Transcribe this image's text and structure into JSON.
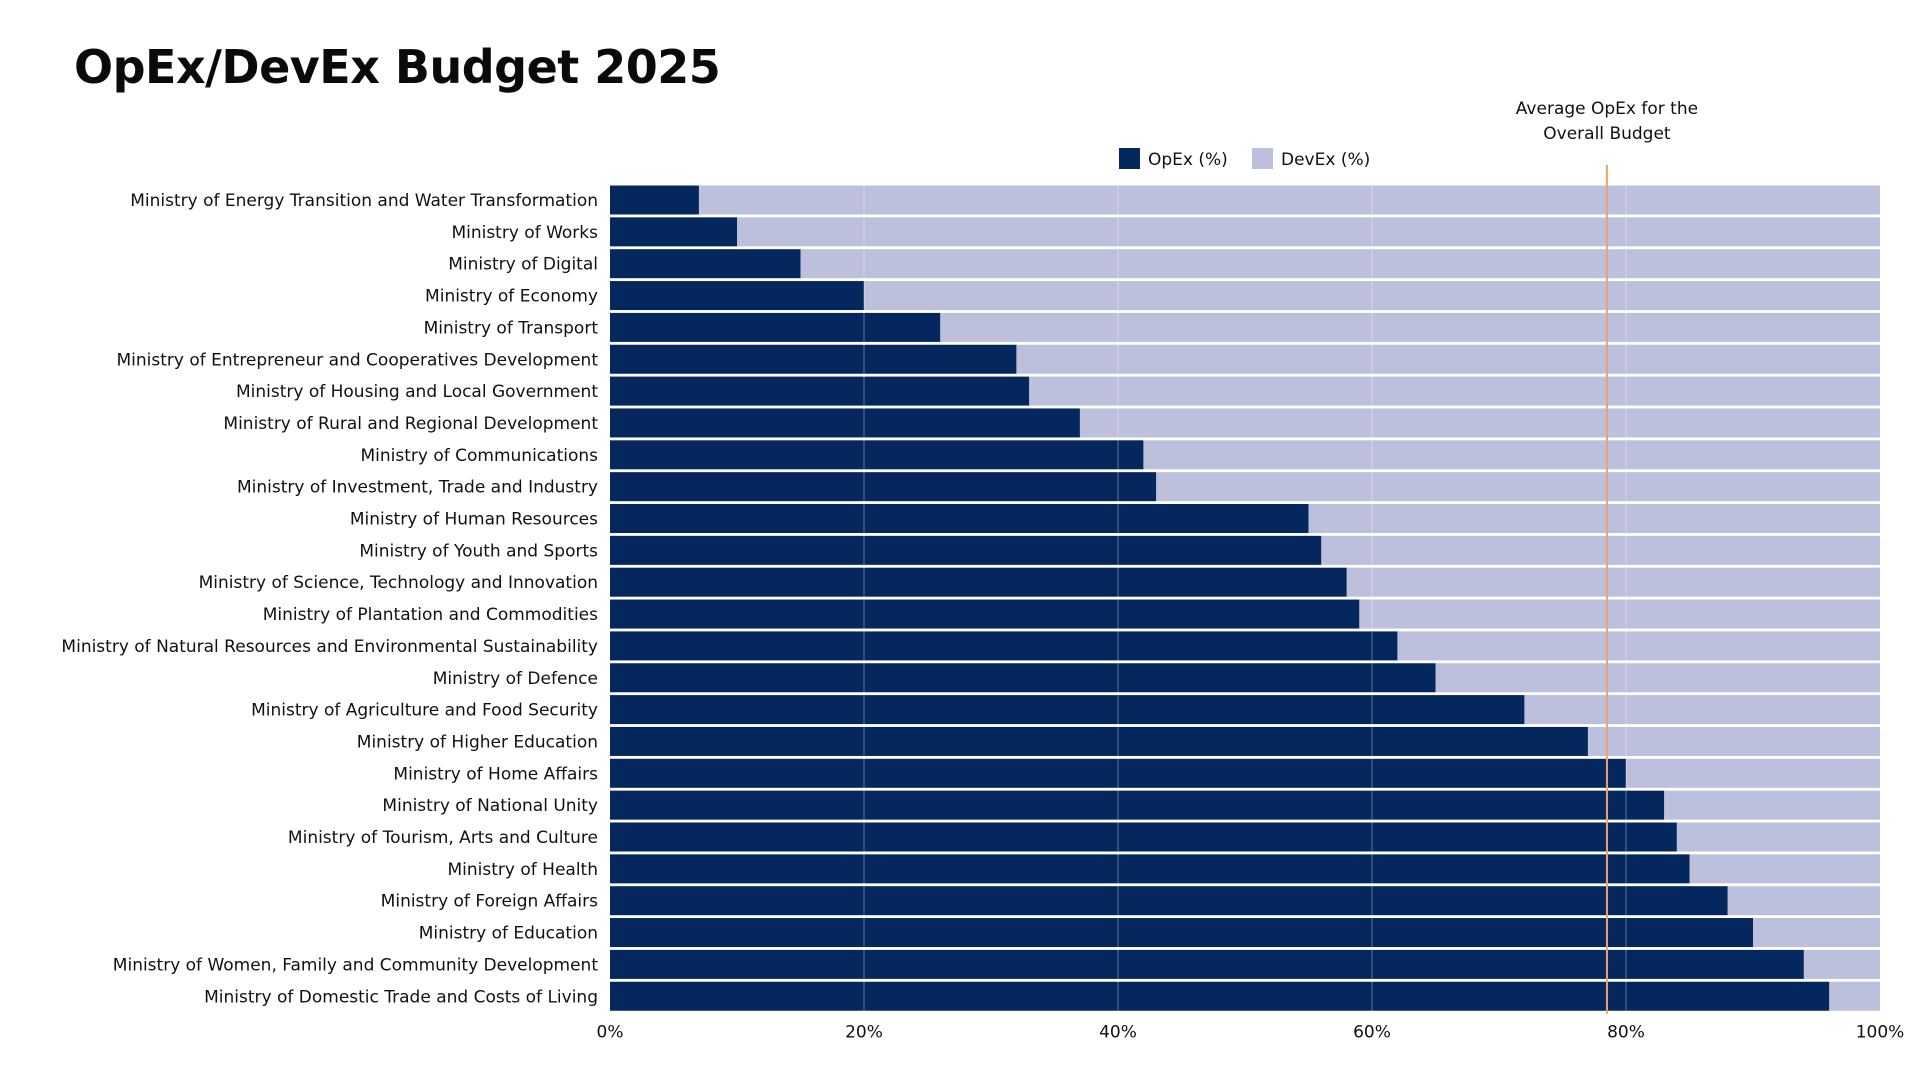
{
  "chart_data": {
    "type": "bar",
    "orientation": "horizontal",
    "stacked": true,
    "title": "OpEx/DevEx Budget 2025",
    "categories": [
      "Ministry of Energy Transition and Water Transformation",
      "Ministry of Works",
      "Ministry of Digital",
      "Ministry of Economy",
      "Ministry of Transport",
      "Ministry of Entrepreneur and Cooperatives Development",
      "Ministry of Housing and Local Government",
      "Ministry of Rural and Regional Development",
      "Ministry of Communications",
      "Ministry of Investment, Trade and Industry",
      "Ministry of Human Resources",
      "Ministry of Youth and Sports",
      "Ministry of Science, Technology and Innovation",
      "Ministry of Plantation and Commodities",
      "Ministry of Natural Resources and Environmental Sustainability",
      "Ministry of Defence",
      "Ministry of Agriculture and Food Security",
      "Ministry of Higher Education",
      "Ministry of Home Affairs",
      "Ministry of National Unity",
      "Ministry of Tourism, Arts and Culture",
      "Ministry of Health",
      "Ministry of Foreign Affairs",
      "Ministry of Education",
      "Ministry of Women, Family and Community Development",
      "Ministry of Domestic Trade and Costs of Living"
    ],
    "series": [
      {
        "name": "OpEx (%)",
        "color": "#04285e",
        "values": [
          7,
          10,
          15,
          20,
          26,
          32,
          33,
          37,
          42,
          43,
          55,
          56,
          58,
          59,
          62,
          65,
          72,
          77,
          80,
          83,
          84,
          85,
          88,
          90,
          94,
          96
        ]
      },
      {
        "name": "DevEx (%)",
        "color": "#bcc0dc",
        "values": [
          93,
          90,
          85,
          80,
          74,
          68,
          67,
          63,
          58,
          57,
          45,
          44,
          42,
          41,
          38,
          35,
          28,
          23,
          20,
          17,
          16,
          15,
          12,
          10,
          6,
          4
        ]
      }
    ],
    "x_ticks": [
      "0%",
      "20%",
      "40%",
      "60%",
      "80%",
      "100%"
    ],
    "xlim": [
      0,
      100
    ],
    "grid": true,
    "legend_position": "top-center",
    "reference_line": {
      "value": 78.5,
      "label_lines": [
        "Average OpEx for the",
        "Overall Budget"
      ],
      "color": "#f0a173"
    }
  }
}
